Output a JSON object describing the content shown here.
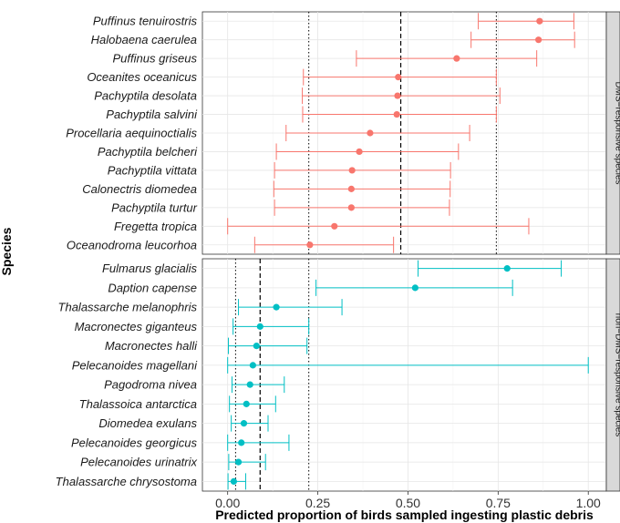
{
  "chart_data": {
    "type": "dot-errorbar",
    "xlabel": "Predicted proportion of birds sampled ingesting plastic debris",
    "ylabel": "Species",
    "xlim": [
      -0.07,
      1.05
    ],
    "xticks": [
      "0.00",
      "0.25",
      "0.50",
      "0.75",
      "1.00"
    ],
    "xtick_values": [
      0,
      0.25,
      0.5,
      0.75,
      1.0
    ],
    "grid": true,
    "panels": [
      {
        "label": "DMS−responsive species",
        "color": "#F8766D",
        "mean_line": 0.48,
        "ci_lines": [
          0.225,
          0.745
        ],
        "species": [
          {
            "name": "Puffinus tenuirostris",
            "mean": 0.865,
            "lower": 0.695,
            "upper": 0.96
          },
          {
            "name": "Halobaena caerulea",
            "mean": 0.862,
            "lower": 0.675,
            "upper": 0.962
          },
          {
            "name": "Puffinus griseus",
            "mean": 0.635,
            "lower": 0.357,
            "upper": 0.857
          },
          {
            "name": "Oceanites oceanicus",
            "mean": 0.473,
            "lower": 0.21,
            "upper": 0.745
          },
          {
            "name": "Pachyptila desolata",
            "mean": 0.471,
            "lower": 0.207,
            "upper": 0.755
          },
          {
            "name": "Pachyptila salvini",
            "mean": 0.469,
            "lower": 0.208,
            "upper": 0.745
          },
          {
            "name": "Procellaria aequinoctialis",
            "mean": 0.395,
            "lower": 0.162,
            "upper": 0.671
          },
          {
            "name": "Pachyptila belcheri",
            "mean": 0.365,
            "lower": 0.135,
            "upper": 0.64
          },
          {
            "name": "Pachyptila vittata",
            "mean": 0.345,
            "lower": 0.13,
            "upper": 0.618
          },
          {
            "name": "Calonectris diomedea",
            "mean": 0.343,
            "lower": 0.128,
            "upper": 0.617
          },
          {
            "name": "Pachyptila turtur",
            "mean": 0.343,
            "lower": 0.13,
            "upper": 0.615
          },
          {
            "name": "Fregetta tropica",
            "mean": 0.296,
            "lower": 0.0,
            "upper": 0.835
          },
          {
            "name": "Oceanodroma leucorhoa",
            "mean": 0.228,
            "lower": 0.075,
            "upper": 0.46
          }
        ]
      },
      {
        "label": "non−DMS−responsive species",
        "color": "#00BFC4",
        "mean_line": 0.09,
        "ci_lines": [
          0.022,
          0.225
        ],
        "species": [
          {
            "name": "Fulmarus glacialis",
            "mean": 0.775,
            "lower": 0.528,
            "upper": 0.925
          },
          {
            "name": "Daption capense",
            "mean": 0.52,
            "lower": 0.245,
            "upper": 0.79
          },
          {
            "name": "Thalassarche melanophris",
            "mean": 0.135,
            "lower": 0.03,
            "upper": 0.317
          },
          {
            "name": "Macronectes giganteus",
            "mean": 0.09,
            "lower": 0.015,
            "upper": 0.225
          },
          {
            "name": "Macronectes halli",
            "mean": 0.08,
            "lower": 0.002,
            "upper": 0.22
          },
          {
            "name": "Pelecanoides magellani",
            "mean": 0.07,
            "lower": 0.0,
            "upper": 1.0
          },
          {
            "name": "Pagodroma nivea",
            "mean": 0.062,
            "lower": 0.012,
            "upper": 0.157
          },
          {
            "name": "Thalassoica antarctica",
            "mean": 0.052,
            "lower": 0.005,
            "upper": 0.133
          },
          {
            "name": "Diomedea exulans",
            "mean": 0.045,
            "lower": 0.01,
            "upper": 0.112
          },
          {
            "name": "Pelecanoides georgicus",
            "mean": 0.038,
            "lower": 0.0,
            "upper": 0.17
          },
          {
            "name": "Pelecanoides urinatrix",
            "mean": 0.03,
            "lower": 0.003,
            "upper": 0.105
          },
          {
            "name": "Thalassarche chrysostoma",
            "mean": 0.017,
            "lower": 0.001,
            "upper": 0.05
          }
        ]
      }
    ]
  }
}
